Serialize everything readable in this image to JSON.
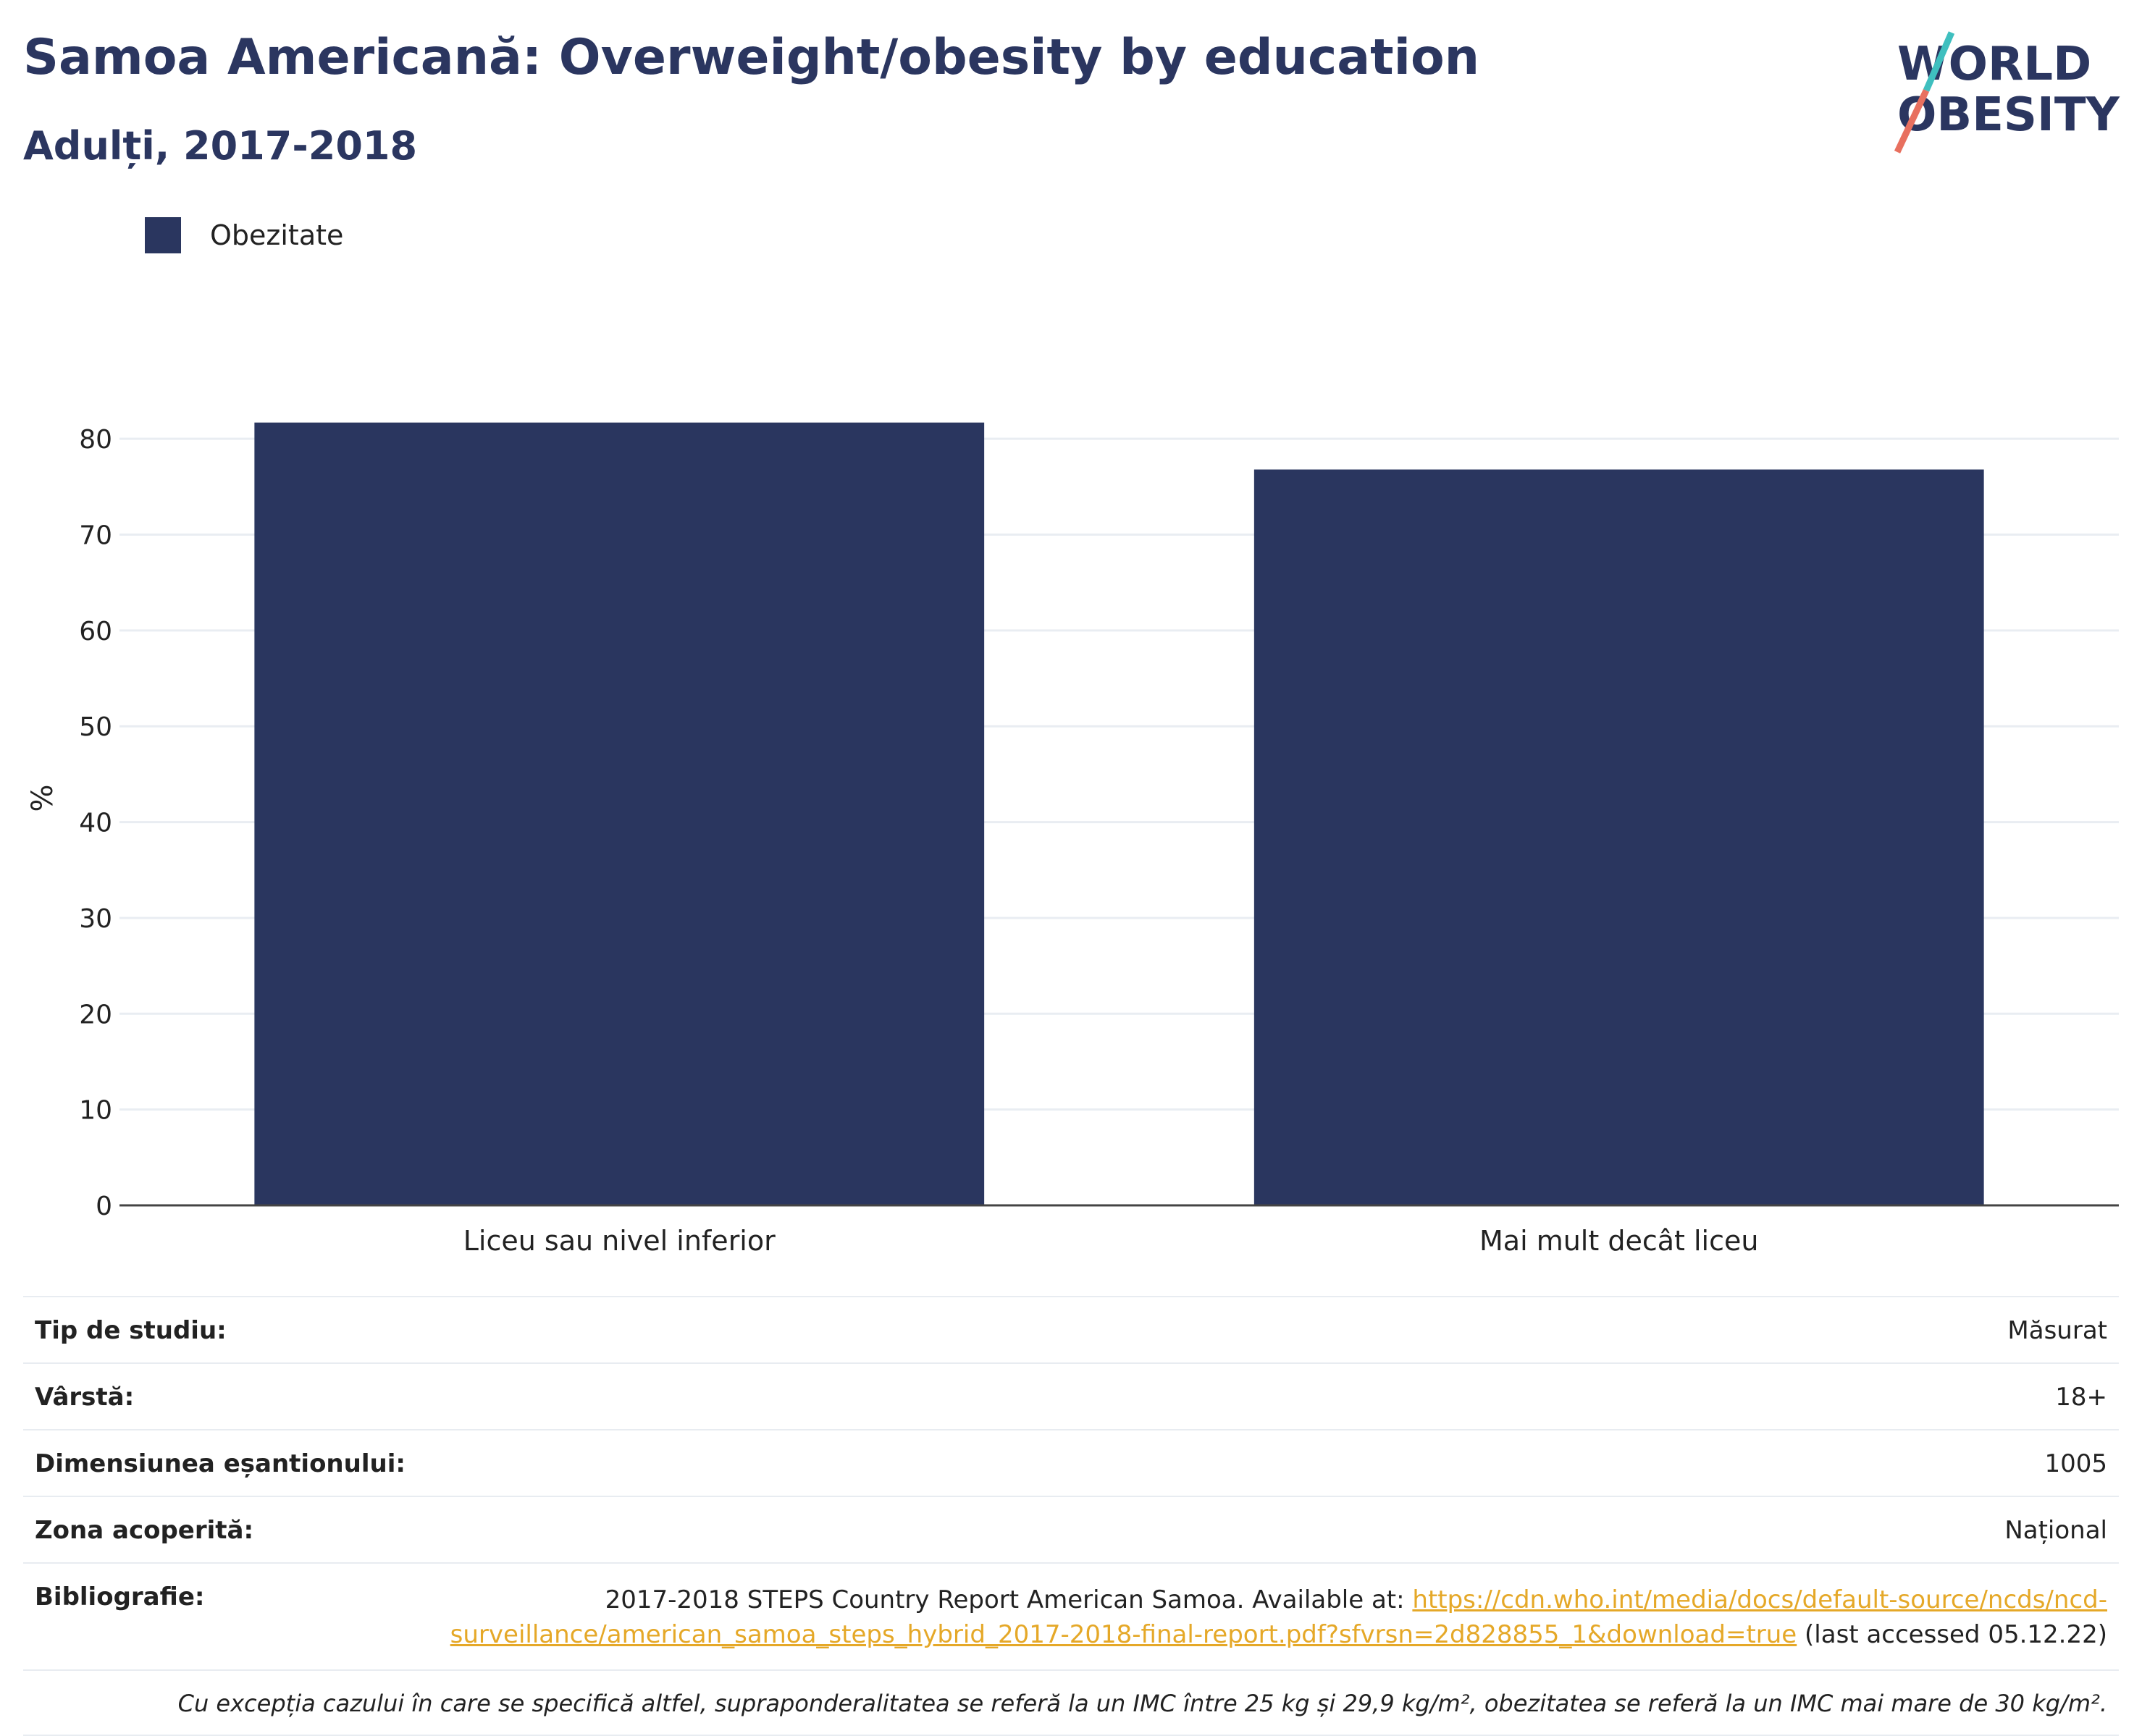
{
  "header": {
    "title": "Samoa Americană: Overweight/obesity by education",
    "subtitle": "Adulți, 2017-2018"
  },
  "logo": {
    "line1": "WORLD",
    "line2": "OBESITY"
  },
  "legend": {
    "label": "Obezitate",
    "color": "#2a365f"
  },
  "chart_data": {
    "type": "bar",
    "categories": [
      "Liceu sau nivel inferior",
      "Mai mult decât liceu"
    ],
    "series": [
      {
        "name": "Obezitate",
        "values": [
          81.7,
          76.8
        ]
      }
    ],
    "ylabel": "%",
    "ylim": [
      0,
      85
    ],
    "yticks": [
      0,
      10,
      20,
      30,
      40,
      50,
      60,
      70,
      80
    ],
    "grid": true,
    "legend_position": "top-left",
    "bar_color": "#2a365f"
  },
  "info": {
    "rows": [
      {
        "label": "Tip de studiu:",
        "value": "Măsurat"
      },
      {
        "label": "Vârstă:",
        "value": "18+"
      },
      {
        "label": "Dimensiunea eșantionului:",
        "value": "1005"
      },
      {
        "label": "Zona acoperită:",
        "value": "Național"
      }
    ],
    "bibliography": {
      "label": "Bibliografie:",
      "text": "2017-2018 STEPS Country Report American Samoa. Available at: ",
      "link": "https://cdn.who.int/media/docs/default-source/ncds/ncd-surveillance/american_samoa_steps_hybrid_2017-2018-final-report.pdf?sfvrsn=2d828855_1&download=true",
      "suffix": " (last accessed 05.12.22)"
    },
    "note": "Cu excepția cazului în care se specifică altfel, supraponderalitatea se referă la un IMC între 25 kg și 29,9 kg/m², obezitatea se referă la un IMC mai mare de 30 kg/m²."
  }
}
